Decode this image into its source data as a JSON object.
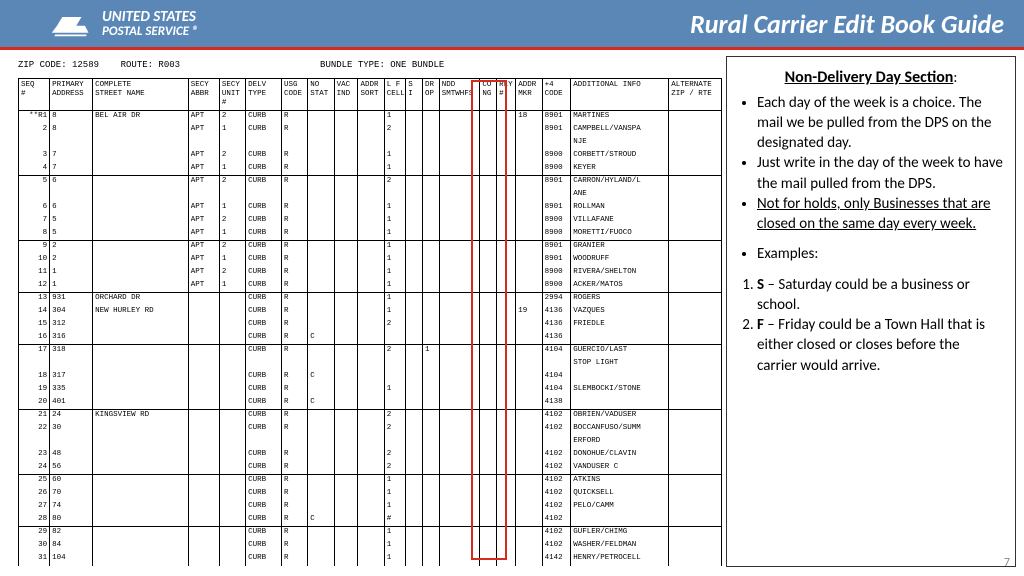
{
  "header": {
    "logo_line1": "UNITED STATES",
    "logo_line2": "POSTAL SERVICE ®",
    "title": "Rural Carrier Edit Book Guide"
  },
  "meta": {
    "zip": "ZIP CODE: 12589",
    "route": "ROUTE: R003",
    "bundle": "BUNDLE TYPE:  ONE BUNDLE"
  },
  "columns": [
    "SEQ\n#",
    "PRIMARY\nADDRESS",
    "COMPLETE\nSTREET NAME",
    "SECY\nABBR",
    "SECY\nUNIT\n#",
    "DELV\nTYPE",
    "USG\nCODE",
    "NO\nSTAT",
    "VAC\nIND",
    "ADDR\nSORT",
    "L F\nCELL",
    "S\nI",
    "DR\nOP",
    "NDD\nSMTWHFS",
    "CO\nNG",
    "RLY\n#",
    "ADDR\nMKR",
    "+4\nCODE",
    "ADDITIONAL INFO",
    "ALTERNATE\nZIP / RTE"
  ],
  "rows": [
    {
      "sep": 1,
      "marker": "**R1",
      "seq": "1",
      "pri": "8",
      "str": "BEL AIR DR",
      "sa": "APT",
      "su": "2",
      "dt": "CURB",
      "uc": "R",
      "lf": "1",
      "am": "18",
      "p4": "8901",
      "inf": "MARTINES"
    },
    {
      "seq": "2",
      "pri": "8",
      "sa": "APT",
      "su": "1",
      "dt": "CURB",
      "uc": "R",
      "lf": "2",
      "p4": "8901",
      "inf": "CAMPBELL/VANSPA"
    },
    {
      "inf": "NJE"
    },
    {
      "seq": "3",
      "pri": "7",
      "sa": "APT",
      "su": "2",
      "dt": "CURB",
      "uc": "R",
      "lf": "1",
      "p4": "8900",
      "inf": "CORBETT/STROUD"
    },
    {
      "seq": "4",
      "pri": "7",
      "sa": "APT",
      "su": "1",
      "dt": "CURB",
      "uc": "R",
      "lf": "1",
      "p4": "8900",
      "inf": "KEYER"
    },
    {
      "sep": 1,
      "seq": "5",
      "pri": "6",
      "sa": "APT",
      "su": "2",
      "dt": "CURB",
      "uc": "R",
      "lf": "2",
      "p4": "8901",
      "inf": "CARRON/HYLAND/L"
    },
    {
      "inf": "ANE"
    },
    {
      "seq": "6",
      "pri": "6",
      "sa": "APT",
      "su": "1",
      "dt": "CURB",
      "uc": "R",
      "lf": "1",
      "p4": "8901",
      "inf": "ROLLMAN"
    },
    {
      "seq": "7",
      "pri": "5",
      "sa": "APT",
      "su": "2",
      "dt": "CURB",
      "uc": "R",
      "lf": "1",
      "p4": "8900",
      "inf": "VILLAFANE"
    },
    {
      "seq": "8",
      "pri": "5",
      "sa": "APT",
      "su": "1",
      "dt": "CURB",
      "uc": "R",
      "lf": "1",
      "p4": "8900",
      "inf": "MORETTI/FUOCO"
    },
    {
      "sep": 1,
      "seq": "9",
      "pri": "2",
      "sa": "APT",
      "su": "2",
      "dt": "CURB",
      "uc": "R",
      "lf": "1",
      "p4": "8901",
      "inf": "GRANIER"
    },
    {
      "seq": "10",
      "pri": "2",
      "sa": "APT",
      "su": "1",
      "dt": "CURB",
      "uc": "R",
      "lf": "1",
      "p4": "8901",
      "inf": "WOODRUFF"
    },
    {
      "seq": "11",
      "pri": "1",
      "sa": "APT",
      "su": "2",
      "dt": "CURB",
      "uc": "R",
      "lf": "1",
      "p4": "8900",
      "inf": "RIVERA/SHELTON"
    },
    {
      "seq": "12",
      "pri": "1",
      "sa": "APT",
      "su": "1",
      "dt": "CURB",
      "uc": "R",
      "lf": "1",
      "p4": "8900",
      "inf": "ACKER/MATOS"
    },
    {
      "sep": 1,
      "seq": "13",
      "pri": "931",
      "str": "ORCHARD DR",
      "dt": "CURB",
      "uc": "R",
      "lf": "1",
      "p4": "2994",
      "inf": "ROGERS"
    },
    {
      "seq": "14",
      "pri": "304",
      "str": "NEW HURLEY RD",
      "dt": "CURB",
      "uc": "R",
      "lf": "1",
      "am": "19",
      "p4": "4136",
      "inf": "VAZQUES"
    },
    {
      "seq": "15",
      "pri": "312",
      "dt": "CURB",
      "uc": "R",
      "lf": "2",
      "p4": "4136",
      "inf": "FRIEDLE"
    },
    {
      "seq": "16",
      "pri": "316",
      "dt": "CURB",
      "uc": "R",
      "ns": "C",
      "p4": "4136"
    },
    {
      "sep": 1,
      "seq": "17",
      "pri": "318",
      "dt": "CURB",
      "uc": "R",
      "lf": "2",
      "dr": "1",
      "p4": "4104",
      "inf": "GUERCIO/LAST"
    },
    {
      "inf": "STOP LIGHT"
    },
    {
      "seq": "18",
      "pri": "317",
      "dt": "CURB",
      "uc": "R",
      "ns": "C",
      "p4": "4104"
    },
    {
      "seq": "19",
      "pri": "335",
      "dt": "CURB",
      "uc": "R",
      "lf": "1",
      "p4": "4104",
      "inf": "SLEMBOCKI/STONE"
    },
    {
      "seq": "20",
      "pri": "401",
      "dt": "CURB",
      "uc": "R",
      "ns": "C",
      "p4": "4138"
    },
    {
      "sep": 1,
      "seq": "21",
      "pri": "24",
      "str": "KINGSVIEW RD",
      "dt": "CURB",
      "uc": "R",
      "lf": "2",
      "p4": "4102",
      "inf": "OBRIEN/VADUSER"
    },
    {
      "seq": "22",
      "pri": "30",
      "dt": "CURB",
      "uc": "R",
      "lf": "2",
      "p4": "4102",
      "inf": "BOCCANFUSO/SUMM"
    },
    {
      "inf": "ERFORD"
    },
    {
      "seq": "23",
      "pri": "48",
      "dt": "CURB",
      "uc": "R",
      "lf": "2",
      "p4": "4102",
      "inf": "DONOHUE/CLAVIN"
    },
    {
      "seq": "24",
      "pri": "56",
      "dt": "CURB",
      "uc": "R",
      "lf": "2",
      "p4": "4102",
      "inf": "VANDUSER C"
    },
    {
      "sep": 1,
      "seq": "25",
      "pri": "60",
      "dt": "CURB",
      "uc": "R",
      "lf": "1",
      "p4": "4102",
      "inf": "ATKINS"
    },
    {
      "seq": "26",
      "pri": "70",
      "dt": "CURB",
      "uc": "R",
      "lf": "1",
      "p4": "4102",
      "inf": "QUICKSELL"
    },
    {
      "seq": "27",
      "pri": "74",
      "dt": "CURB",
      "uc": "R",
      "lf": "1",
      "p4": "4102",
      "inf": "PELO/CAMM"
    },
    {
      "seq": "28",
      "pri": "80",
      "dt": "CURB",
      "uc": "R",
      "ns": "C",
      "lf": "#",
      "p4": "4102"
    },
    {
      "sep": 1,
      "seq": "29",
      "pri": "82",
      "dt": "CURB",
      "uc": "R",
      "lf": "1",
      "p4": "4102",
      "inf": "GUFLER/CHIMG"
    },
    {
      "seq": "30",
      "pri": "84",
      "dt": "CURB",
      "uc": "R",
      "lf": "1",
      "p4": "4102",
      "inf": "WASHER/FELDMAN"
    },
    {
      "seq": "31",
      "pri": "104",
      "dt": "CURB",
      "uc": "R",
      "lf": "1",
      "p4": "4142",
      "inf": "HENRY/PETROCELL"
    }
  ],
  "sidebar": {
    "heading": "Non-Delivery Day Section",
    "b1": "Each day of the week is a choice.  The mail we be pulled from the DPS on the designated day.",
    "b2": "Just write in the day of the week to have the mail pulled from the DPS.",
    "b3": "Not for holds, only Businesses that are closed on the same day every week.",
    "ex_label": "Examples:",
    "e1b": "S",
    "e1": " – Saturday could be  a business or school.",
    "e2b": "F",
    "e2": " – Friday could be a Town Hall that is either closed or closes before the carrier would arrive."
  },
  "page": "7"
}
